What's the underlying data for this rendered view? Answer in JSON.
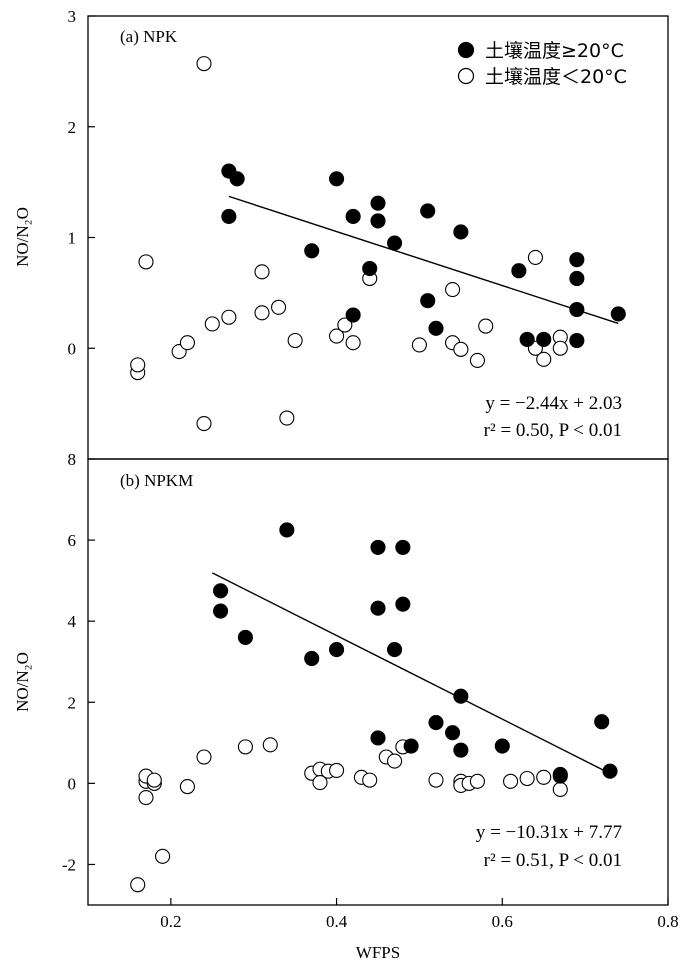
{
  "chart_data": [
    {
      "type": "scatter",
      "panel_label": "(a) NPK",
      "ylabel": "NO/N₂O",
      "xlim": [
        0.1,
        0.8
      ],
      "ylim": [
        -1,
        3
      ],
      "y_ticks": [
        0,
        1,
        2,
        3
      ],
      "legend": {
        "placement": "top-right"
      },
      "series": [
        {
          "name": "土壤温度≥20°C",
          "marker": "filled",
          "points": [
            [
              0.27,
              1.6
            ],
            [
              0.28,
              1.53
            ],
            [
              0.27,
              1.19
            ],
            [
              0.37,
              0.88
            ],
            [
              0.4,
              1.53
            ],
            [
              0.42,
              1.19
            ],
            [
              0.42,
              0.3
            ],
            [
              0.44,
              0.72
            ],
            [
              0.45,
              1.15
            ],
            [
              0.45,
              1.31
            ],
            [
              0.47,
              0.95
            ],
            [
              0.51,
              1.24
            ],
            [
              0.51,
              0.43
            ],
            [
              0.52,
              0.18
            ],
            [
              0.55,
              1.05
            ],
            [
              0.62,
              0.7
            ],
            [
              0.63,
              0.08
            ],
            [
              0.65,
              0.08
            ],
            [
              0.69,
              0.8
            ],
            [
              0.69,
              0.63
            ],
            [
              0.69,
              0.35
            ],
            [
              0.69,
              0.07
            ],
            [
              0.74,
              0.31
            ]
          ]
        },
        {
          "name": "土壤温度＜20°C",
          "marker": "open",
          "points": [
            [
              0.16,
              -0.22
            ],
            [
              0.16,
              -0.15
            ],
            [
              0.17,
              0.78
            ],
            [
              0.21,
              -0.03
            ],
            [
              0.22,
              0.05
            ],
            [
              0.24,
              2.57
            ],
            [
              0.24,
              -0.68
            ],
            [
              0.25,
              0.22
            ],
            [
              0.27,
              0.28
            ],
            [
              0.31,
              0.69
            ],
            [
              0.31,
              0.32
            ],
            [
              0.33,
              0.37
            ],
            [
              0.35,
              0.07
            ],
            [
              0.34,
              -0.63
            ],
            [
              0.4,
              0.11
            ],
            [
              0.41,
              0.21
            ],
            [
              0.42,
              0.05
            ],
            [
              0.44,
              0.63
            ],
            [
              0.5,
              0.03
            ],
            [
              0.54,
              0.05
            ],
            [
              0.54,
              0.53
            ],
            [
              0.55,
              -0.01
            ],
            [
              0.57,
              -0.11
            ],
            [
              0.58,
              0.2
            ],
            [
              0.64,
              0.82
            ],
            [
              0.64,
              0.0
            ],
            [
              0.65,
              -0.1
            ],
            [
              0.67,
              0.1
            ],
            [
              0.67,
              0.0
            ]
          ]
        }
      ],
      "fit_line": {
        "slope": -2.44,
        "intercept": 2.03,
        "x_range": [
          0.27,
          0.74
        ]
      },
      "equation": "y = −2.44x + 2.03",
      "stats": "r² = 0.50,  P < 0.01"
    },
    {
      "type": "scatter",
      "panel_label": "(b) NPKM",
      "ylabel": "NO/N₂O",
      "xlabel": "WFPS",
      "xlim": [
        0.1,
        0.8
      ],
      "ylim": [
        -3,
        8
      ],
      "x_ticks": [
        "0.2",
        "0.4",
        "0.6",
        "0.8"
      ],
      "y_ticks": [
        -2,
        0,
        2,
        4,
        6,
        8
      ],
      "series": [
        {
          "name": "土壤温度≥20°C",
          "marker": "filled",
          "points": [
            [
              0.26,
              4.75
            ],
            [
              0.26,
              4.25
            ],
            [
              0.29,
              3.6
            ],
            [
              0.34,
              6.25
            ],
            [
              0.37,
              3.08
            ],
            [
              0.4,
              3.3
            ],
            [
              0.45,
              5.82
            ],
            [
              0.45,
              4.32
            ],
            [
              0.45,
              1.12
            ],
            [
              0.47,
              3.3
            ],
            [
              0.48,
              5.82
            ],
            [
              0.48,
              4.42
            ],
            [
              0.49,
              0.92
            ],
            [
              0.52,
              1.5
            ],
            [
              0.54,
              1.25
            ],
            [
              0.55,
              2.15
            ],
            [
              0.55,
              0.82
            ],
            [
              0.6,
              0.92
            ],
            [
              0.67,
              0.18
            ],
            [
              0.67,
              0.22
            ],
            [
              0.72,
              1.52
            ],
            [
              0.73,
              0.3
            ]
          ]
        },
        {
          "name": "土壤温度＜20°C",
          "marker": "open",
          "points": [
            [
              0.16,
              -2.5
            ],
            [
              0.17,
              -0.35
            ],
            [
              0.17,
              0.05
            ],
            [
              0.17,
              0.18
            ],
            [
              0.18,
              0.0
            ],
            [
              0.18,
              0.08
            ],
            [
              0.19,
              -1.8
            ],
            [
              0.22,
              -0.08
            ],
            [
              0.24,
              0.65
            ],
            [
              0.29,
              0.9
            ],
            [
              0.32,
              0.95
            ],
            [
              0.37,
              0.25
            ],
            [
              0.38,
              0.35
            ],
            [
              0.38,
              0.02
            ],
            [
              0.39,
              0.3
            ],
            [
              0.4,
              0.32
            ],
            [
              0.43,
              0.15
            ],
            [
              0.44,
              0.08
            ],
            [
              0.46,
              0.65
            ],
            [
              0.47,
              0.55
            ],
            [
              0.48,
              0.9
            ],
            [
              0.52,
              0.08
            ],
            [
              0.55,
              0.05
            ],
            [
              0.55,
              -0.05
            ],
            [
              0.56,
              0.0
            ],
            [
              0.57,
              0.05
            ],
            [
              0.61,
              0.05
            ],
            [
              0.63,
              0.12
            ],
            [
              0.65,
              0.15
            ],
            [
              0.67,
              -0.15
            ]
          ]
        }
      ],
      "fit_line": {
        "slope": -10.31,
        "intercept": 7.77,
        "x_range": [
          0.25,
          0.73
        ]
      },
      "equation": "y = −10.31x + 7.77",
      "stats": "r² = 0.51,  P < 0.01"
    }
  ]
}
